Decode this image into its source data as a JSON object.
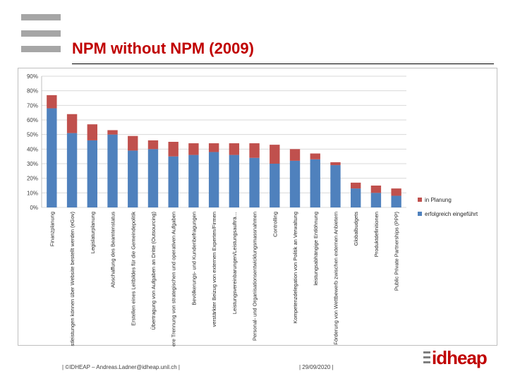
{
  "slide": {
    "title": "NPM without NPM (2009)",
    "footer_left": "| ©IDHEAP – Andreas.Ladner@idheap.unil.ch |",
    "footer_center": "| 29/09/2020 |",
    "logo_text": "idheap",
    "colors": {
      "title": "#c00000",
      "planning": "#c0504d",
      "done": "#4f81bd"
    }
  },
  "chart_data": {
    "type": "bar",
    "stacked": true,
    "title": "",
    "xlabel": "",
    "ylabel": "",
    "ylim": [
      0,
      90
    ],
    "yticks": [
      "0%",
      "10%",
      "20%",
      "30%",
      "40%",
      "50%",
      "60%",
      "70%",
      "80%",
      "90%"
    ],
    "legend_position": "right",
    "categories": [
      "Finanzplanung",
      "Dienstleistungen können über Website bestellt werden (eGov)",
      "Legislaturplanung",
      "Abschaffung des Beamtenstatus",
      "Erstellen eines Leitbildes für die Gemeindepolitik",
      "Übertragung von Aufgaben an Dritte (Outsourcing)",
      "bessere Trennung von strategischen und operativen Aufgaben",
      "Bevölkerungs- und Kundenbefragungen",
      "verstärkter Beizug von externen Experten/Firmen",
      "Leistungsvereinbarungen/Leistungsaufträ…",
      "Personal- und Organisationsentwicklungsmassnahmen",
      "Controlling",
      "Kompetenzdelegation von Politik an Verwaltung",
      "leistungsabhängige Entlöhnung",
      "Förderung von Wettbewerb zwischen externen Anbietern",
      "Globalbudgets",
      "Produktdefinitionen",
      "Public Private Partnerships (PPP)"
    ],
    "series": [
      {
        "name": "erfolgreich eingeführt",
        "color": "#4f81bd",
        "values": [
          68,
          51,
          46,
          50,
          39,
          40,
          35,
          36,
          38,
          36,
          34,
          30,
          32,
          33,
          29,
          13,
          10,
          8
        ]
      },
      {
        "name": "in Planung",
        "color": "#c0504d",
        "values": [
          9,
          13,
          11,
          3,
          10,
          6,
          10,
          8,
          6,
          8,
          10,
          13,
          8,
          4,
          2,
          4,
          5,
          5
        ]
      }
    ]
  }
}
